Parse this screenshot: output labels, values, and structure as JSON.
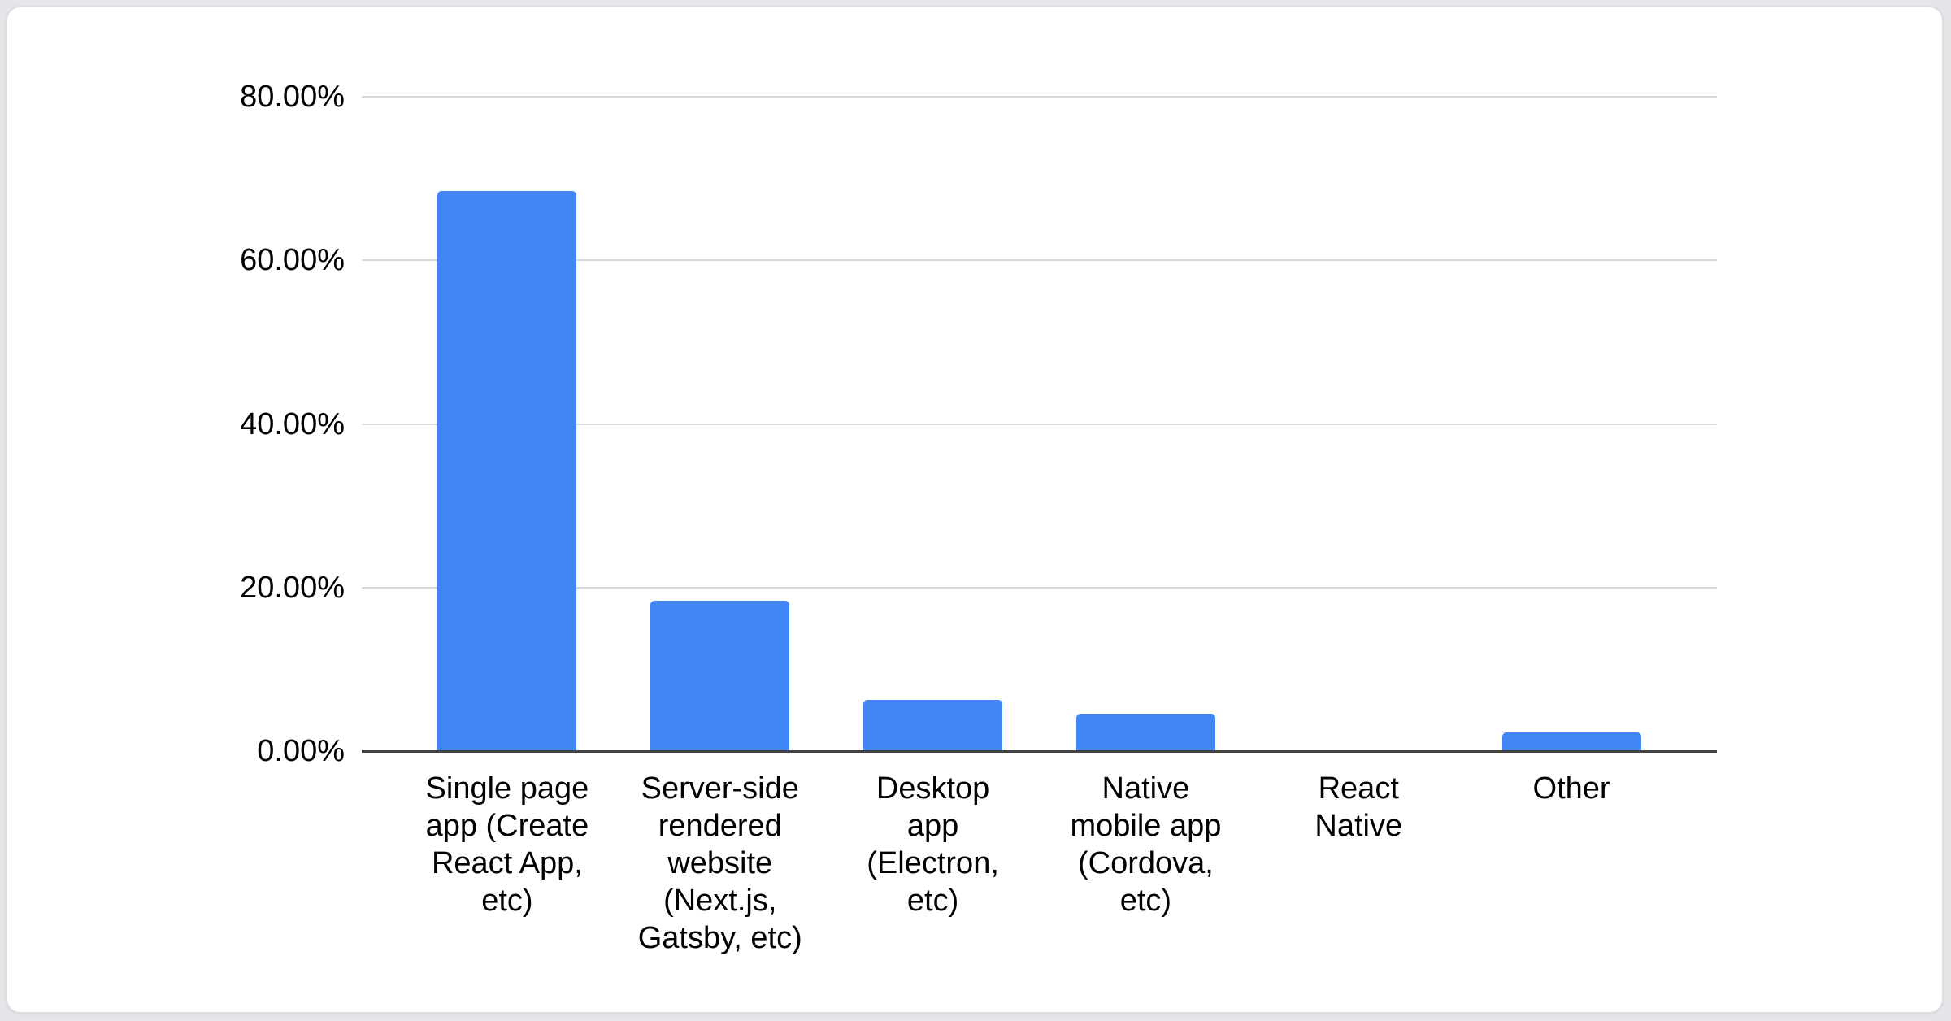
{
  "chart_data": {
    "type": "bar",
    "title": "",
    "xlabel": "",
    "ylabel": "",
    "categories": [
      "Single page app (Create React App, etc)",
      "Server-side rendered website (Next.js, Gatsby, etc)",
      "Desktop app (Electron, etc)",
      "Native mobile app (Cordova, etc)",
      "React Native",
      "Other"
    ],
    "category_wrapped_lines": [
      [
        "Single page",
        "app (Create",
        "React App,",
        "etc)"
      ],
      [
        "Server-side",
        "rendered",
        "website",
        "(Next.js,",
        "Gatsby, etc)"
      ],
      [
        "Desktop",
        "app",
        "(Electron,",
        "etc)"
      ],
      [
        "Native",
        "mobile app",
        "(Cordova,",
        "etc)"
      ],
      [
        "React",
        "Native"
      ],
      [
        "Other"
      ]
    ],
    "values": [
      68.5,
      18.4,
      6.3,
      4.6,
      0,
      2.3
    ],
    "value_unit": "percent",
    "ylim": [
      0,
      80
    ],
    "yticks": [
      0,
      20,
      40,
      60,
      80
    ],
    "ytick_labels": [
      "0.00%",
      "20.00%",
      "40.00%",
      "60.00%",
      "80.00%"
    ],
    "grid": true,
    "legend_position": "none",
    "colors": {
      "bar": "#4285f4",
      "gridline": "#d9d9d9",
      "axis_baseline": "#424242",
      "text": "#000000",
      "card_background": "#ffffff",
      "card_border": "#dbdce0",
      "page_background": "#e4e6e9"
    }
  }
}
